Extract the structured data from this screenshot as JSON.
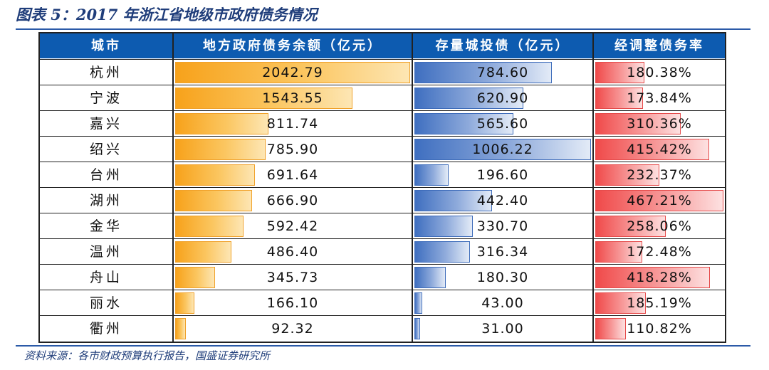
{
  "title": "图表 5：2017 年浙江省地级市政府债务情况",
  "source": "资料来源：各市财政预算执行报告，国盛证券研究所",
  "chart_data": {
    "type": "table",
    "columns": [
      "城市",
      "地方政府债务余额（亿元）",
      "存量城投债（亿元）",
      "经调整债务率"
    ],
    "rows": [
      {
        "city": "杭州",
        "gov_debt": "2042.79",
        "chengtou": "784.60",
        "ratio": "180.38%"
      },
      {
        "city": "宁波",
        "gov_debt": "1543.55",
        "chengtou": "620.90",
        "ratio": "173.84%"
      },
      {
        "city": "嘉兴",
        "gov_debt": "811.74",
        "chengtou": "565.60",
        "ratio": "310.36%"
      },
      {
        "city": "绍兴",
        "gov_debt": "785.90",
        "chengtou": "1006.22",
        "ratio": "415.42%"
      },
      {
        "city": "台州",
        "gov_debt": "691.64",
        "chengtou": "196.60",
        "ratio": "232.37%"
      },
      {
        "city": "湖州",
        "gov_debt": "666.90",
        "chengtou": "442.40",
        "ratio": "467.21%"
      },
      {
        "city": "金华",
        "gov_debt": "592.42",
        "chengtou": "330.70",
        "ratio": "258.06%"
      },
      {
        "city": "温州",
        "gov_debt": "486.40",
        "chengtou": "316.34",
        "ratio": "172.48%"
      },
      {
        "city": "舟山",
        "gov_debt": "345.73",
        "chengtou": "180.30",
        "ratio": "418.28%"
      },
      {
        "city": "丽水",
        "gov_debt": "166.10",
        "chengtou": "43.00",
        "ratio": "185.19%"
      },
      {
        "city": "衢州",
        "gov_debt": "92.32",
        "chengtou": "31.00",
        "ratio": "110.82%"
      }
    ]
  },
  "colors": {
    "header_bg": "#0d5bb0",
    "gov_bar": "#f7a21b",
    "chengtou_bar": "#3f6fc0",
    "ratio_bar": "#f04a4a",
    "title_color": "#1f3d7a"
  }
}
